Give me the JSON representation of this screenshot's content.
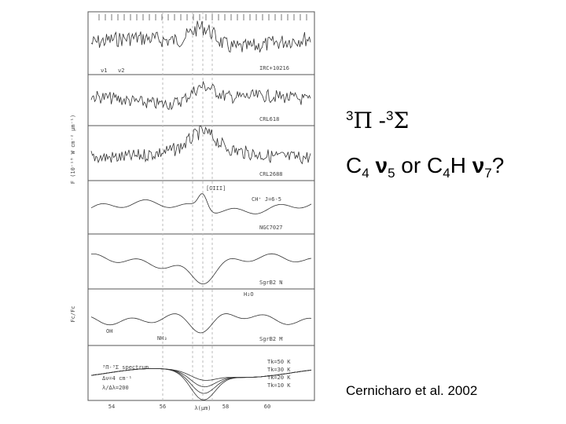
{
  "slide": {
    "heading": [
      "3",
      "Π",
      " -",
      "3",
      "Σ"
    ],
    "question": [
      "C",
      "4",
      " ν",
      "5",
      " or C",
      "4",
      "H ",
      "ν",
      "7",
      "?"
    ],
    "citation": "Cernicharo et al. 2002"
  },
  "figure": {
    "panels": [
      "IRC+10216",
      "CRL618",
      "CRL2688",
      "NGC7027",
      "SgrB2 N",
      "SgrB2 M"
    ],
    "top_labels": [
      "ν1",
      "ν2"
    ],
    "annotations": [
      "[OIII]",
      "CH⁺ J=6-5",
      "H₂O",
      "OH",
      "NH₃"
    ],
    "model": {
      "title": "³Π-³Σ spectrum",
      "resolution": "Δν=4 cm⁻¹",
      "ratio": "λ/Δλ=200",
      "temps": [
        "Tk=50 K",
        "Tk=30 K",
        "Tk=20 K",
        "Tk=10 K"
      ]
    },
    "y_label": "F (10⁻¹⁸ W cm⁻² μm⁻¹)",
    "ratio_label": "Fc/Fc",
    "x_ticks": [
      "54",
      "56",
      "58",
      "60"
    ],
    "x_label": "λ(μm)"
  }
}
